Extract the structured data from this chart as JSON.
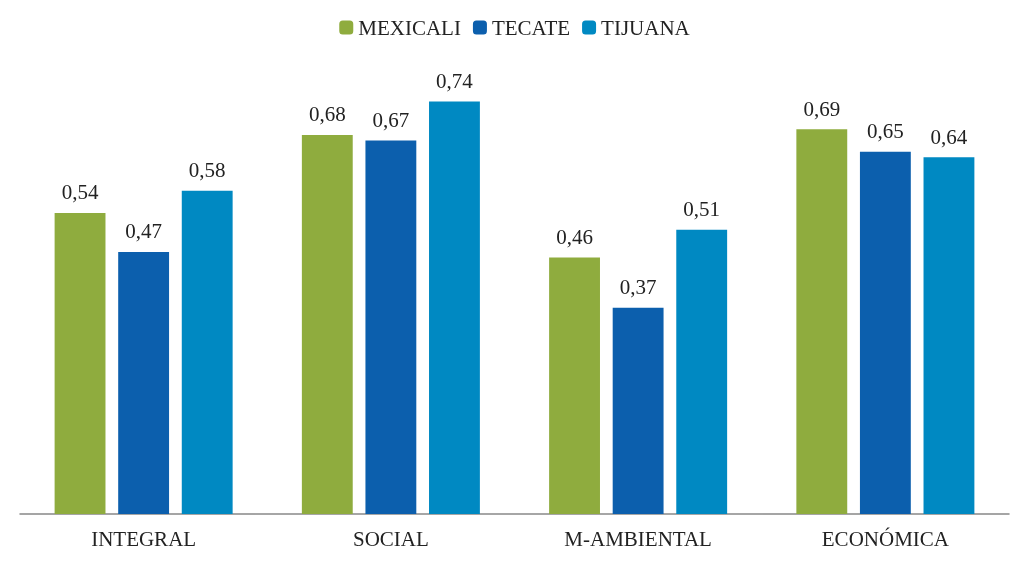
{
  "chart_data": {
    "type": "bar",
    "categories": [
      "INTEGRAL",
      "SOCIAL",
      "M-AMBIENTAL",
      "ECONÓMICA"
    ],
    "series": [
      {
        "name": "MEXICALI",
        "color": "#8fac3e",
        "values": [
          0.54,
          0.68,
          0.46,
          0.69
        ],
        "value_labels": [
          "0,54",
          "0,68",
          "0,46",
          "0,69"
        ]
      },
      {
        "name": "TECATE",
        "color": "#0c5fad",
        "values": [
          0.47,
          0.67,
          0.37,
          0.65
        ],
        "value_labels": [
          "0,47",
          "0,67",
          "0,37",
          "0,65"
        ]
      },
      {
        "name": "TIJUANA",
        "color": "#0089c2",
        "values": [
          0.58,
          0.74,
          0.51,
          0.64
        ],
        "value_labels": [
          "0,58",
          "0,74",
          "0,51",
          "0,64"
        ]
      }
    ],
    "legend": "top"
  }
}
